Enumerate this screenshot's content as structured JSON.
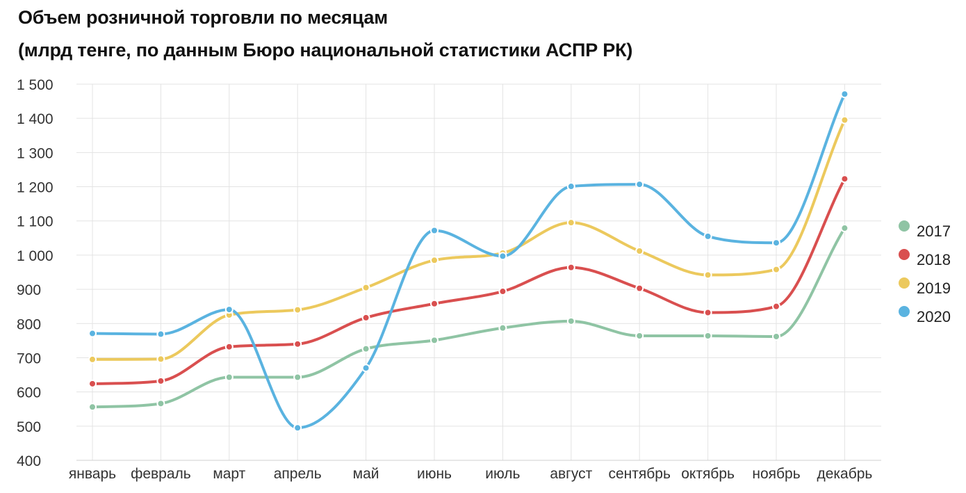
{
  "title_line1": "Объем розничной торговли по месяцам",
  "title_line2": "(млрд тенге, по данным Бюро национальной статистики АСПР РК)",
  "chart_data": {
    "type": "line",
    "title": "Объем розничной торговли по месяцам (млрд тенге, по данным Бюро национальной статистики АСПР РК)",
    "xlabel": "",
    "ylabel": "",
    "ylim": [
      400,
      1500
    ],
    "yticks": [
      400,
      500,
      600,
      700,
      800,
      900,
      1000,
      1100,
      1200,
      1300,
      1400,
      1500
    ],
    "ytick_labels": [
      "400",
      "500",
      "600",
      "700",
      "800",
      "900",
      "1 000",
      "1 100",
      "1 200",
      "1 300",
      "1 400",
      "1 500"
    ],
    "categories": [
      "январь",
      "февраль",
      "март",
      "апрель",
      "май",
      "июнь",
      "июль",
      "август",
      "сентябрь",
      "октябрь",
      "ноябрь",
      "декабрь"
    ],
    "grid": true,
    "legend_position": "right",
    "series": [
      {
        "name": "2017",
        "color": "#8fc4a4",
        "values": [
          556,
          566,
          643,
          643,
          726,
          751,
          787,
          807,
          764,
          764,
          762,
          1079
        ]
      },
      {
        "name": "2018",
        "color": "#d94f4f",
        "values": [
          624,
          632,
          732,
          740,
          817,
          858,
          894,
          964,
          903,
          832,
          850,
          1223
        ]
      },
      {
        "name": "2019",
        "color": "#ecc95d",
        "values": [
          695,
          696,
          825,
          840,
          905,
          985,
          1006,
          1095,
          1012,
          942,
          958,
          1395
        ]
      },
      {
        "name": "2020",
        "color": "#5ab3e0",
        "values": [
          771,
          769,
          841,
          495,
          670,
          1072,
          997,
          1201,
          1207,
          1055,
          1036,
          1471
        ]
      }
    ]
  }
}
